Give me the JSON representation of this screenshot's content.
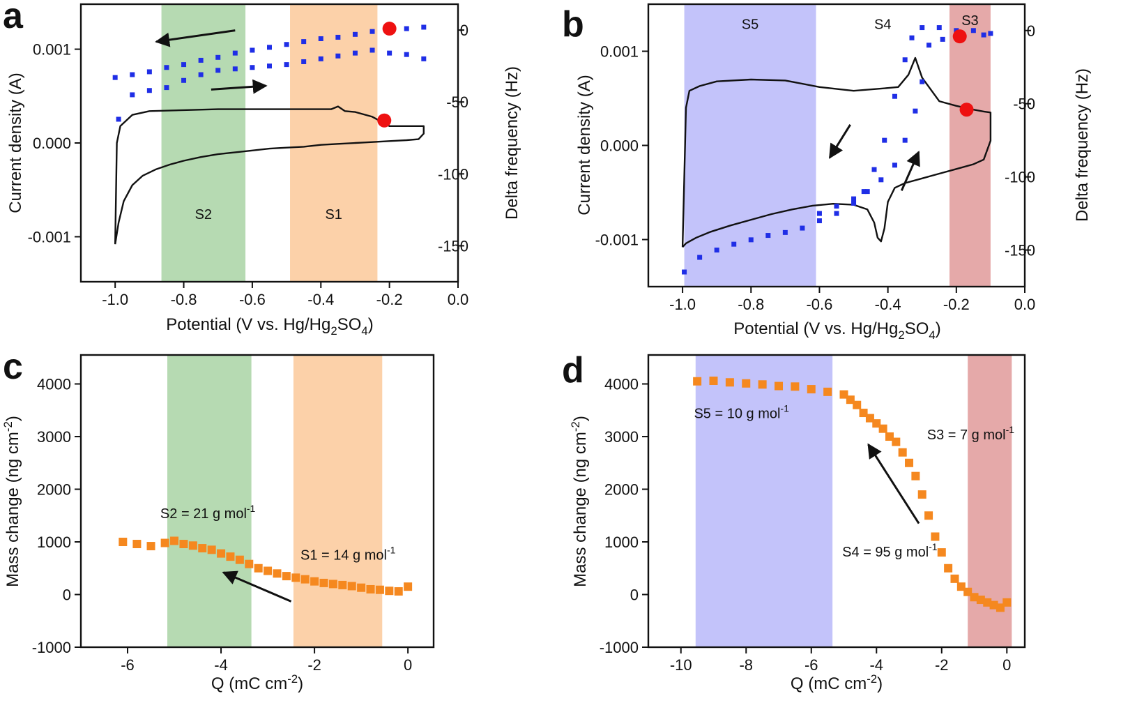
{
  "chart_data": [
    {
      "id": "a",
      "type": "line",
      "panel_label": "a",
      "xlabel": "Potential (V vs. Hg/Hg2SO4)",
      "ylabel": "Current density (A)",
      "y2label": "Delta frequency (Hz)",
      "xlim": [
        -1.1,
        0.0
      ],
      "ylim": [
        -0.00148,
        0.00148
      ],
      "y2lim": [
        -175,
        18
      ],
      "xticks": [
        -1.0,
        -0.8,
        -0.6,
        -0.4,
        -0.2,
        0.0
      ],
      "xtick_labels": [
        "-1.0",
        "-0.8",
        "-0.6",
        "-0.4",
        "-0.2",
        "0.0"
      ],
      "yticks": [
        -0.001,
        0.0,
        0.001
      ],
      "ytick_labels": [
        "-0.001",
        "0.000",
        "0.001"
      ],
      "y2ticks": [
        0,
        -50,
        -100,
        -150
      ],
      "y2tick_labels": [
        "0",
        "-50",
        "-100",
        "-150"
      ],
      "regions": [
        {
          "label": "S2",
          "x": [
            -0.865,
            -0.62
          ],
          "color": "#a9d3a5",
          "label_y": -0.00076
        },
        {
          "label": "S1",
          "x": [
            -0.49,
            -0.235
          ],
          "color": "#fbc99a",
          "label_y": -0.00076
        }
      ],
      "cv_curve": {
        "axis": "left",
        "x": [
          -1.0,
          -0.99,
          -0.975,
          -0.95,
          -0.92,
          -0.88,
          -0.84,
          -0.8,
          -0.75,
          -0.7,
          -0.65,
          -0.6,
          -0.55,
          -0.5,
          -0.45,
          -0.4,
          -0.35,
          -0.3,
          -0.25,
          -0.2,
          -0.15,
          -0.115,
          -0.1,
          -0.1,
          -0.115,
          -0.15,
          -0.2,
          -0.25,
          -0.3,
          -0.33,
          -0.35,
          -0.37,
          -0.4,
          -0.5,
          -0.6,
          -0.7,
          -0.8,
          -0.9,
          -0.95,
          -0.985,
          -0.995,
          -1.0
        ],
        "y": [
          -0.00108,
          -0.00085,
          -0.00062,
          -0.00045,
          -0.00035,
          -0.00028,
          -0.00023,
          -0.00019,
          -0.00015,
          -0.00012,
          -0.0001,
          -8e-05,
          -6e-05,
          -5e-05,
          -4e-05,
          -2e-05,
          -1e-05,
          0.0,
          1e-05,
          2e-05,
          3e-05,
          4e-05,
          0.0001,
          0.00018,
          0.00018,
          0.00018,
          0.00018,
          0.00028,
          0.00033,
          0.00034,
          0.00039,
          0.00036,
          0.00036,
          0.00036,
          0.00036,
          0.00036,
          0.00035,
          0.00034,
          0.0003,
          0.00018,
          0.0,
          -0.00108
        ]
      },
      "frequency_scatter": {
        "axis": "right",
        "color": "#1f2ee6",
        "x": [
          -1.0,
          -0.95,
          -0.9,
          -0.85,
          -0.8,
          -0.75,
          -0.7,
          -0.65,
          -0.6,
          -0.55,
          -0.5,
          -0.45,
          -0.4,
          -0.35,
          -0.3,
          -0.25,
          -0.2,
          -0.15,
          -0.1,
          -0.1,
          -0.15,
          -0.2,
          -0.25,
          -0.3,
          -0.35,
          -0.4,
          -0.45,
          -0.5,
          -0.55,
          -0.6,
          -0.65,
          -0.7,
          -0.75,
          -0.8,
          -0.85,
          -0.9,
          -0.95,
          -0.99
        ],
        "y": [
          -33,
          -31,
          -29,
          -26,
          -24,
          -21,
          -19,
          -16,
          -14,
          -12,
          -10,
          -8,
          -6,
          -5,
          -3,
          -1,
          0,
          1,
          2,
          -20,
          -17,
          -16,
          -14,
          -16,
          -18,
          -20,
          -22,
          -24,
          -25,
          -26,
          -27,
          -28,
          -31,
          -35,
          -40,
          -42,
          -45,
          -62
        ]
      },
      "markers": [
        {
          "x": -0.2,
          "y": 1,
          "axis": "right",
          "color": "#ee1111"
        },
        {
          "x": -0.215,
          "y": 0.00024,
          "axis": "left",
          "color": "#ee1111"
        }
      ],
      "arrows": [
        {
          "x1": -0.65,
          "y1": 0.0012,
          "x2": -0.88,
          "y2": 0.00108,
          "axis": "left"
        },
        {
          "x1": -0.72,
          "y1": 0.00057,
          "x2": -0.56,
          "y2": 0.00061,
          "axis": "left"
        }
      ]
    },
    {
      "id": "b",
      "type": "line",
      "panel_label": "b",
      "xlabel": "Potential (V vs. Hg/Hg2SO4)",
      "ylabel": "Current density (A)",
      "y2label": "Delta frequency (Hz)",
      "xlim": [
        -1.1,
        0.0
      ],
      "ylim": [
        -0.0015,
        0.0015
      ],
      "y2lim": [
        -175,
        18
      ],
      "xticks": [
        -1.0,
        -0.8,
        -0.6,
        -0.4,
        -0.2,
        0.0
      ],
      "xtick_labels": [
        "-1.0",
        "-0.8",
        "-0.6",
        "-0.4",
        "-0.2",
        "0.0"
      ],
      "yticks": [
        -0.001,
        0.0,
        0.001
      ],
      "ytick_labels": [
        "-0.001",
        "0.000",
        "0.001"
      ],
      "y2ticks": [
        0,
        -50,
        -100,
        -150
      ],
      "y2tick_labels": [
        "0",
        "-50",
        "-100",
        "-150"
      ],
      "regions": [
        {
          "label": "S5",
          "x": [
            -0.995,
            -0.61
          ],
          "color": "#b9b9f9",
          "label_y": 0.00129
        },
        {
          "label": "S4",
          "x": [
            -0.61,
            -0.22
          ],
          "color": "none",
          "label_y": 0.00129
        },
        {
          "label": "S3",
          "x": [
            -0.22,
            -0.1
          ],
          "color": "#e09a9a",
          "label_y": 0.00133
        }
      ],
      "cv_curve": {
        "axis": "left",
        "x": [
          -1.0,
          -0.99,
          -0.98,
          -0.96,
          -0.92,
          -0.86,
          -0.8,
          -0.74,
          -0.68,
          -0.62,
          -0.56,
          -0.5,
          -0.46,
          -0.44,
          -0.43,
          -0.42,
          -0.41,
          -0.4,
          -0.38,
          -0.35,
          -0.3,
          -0.25,
          -0.2,
          -0.15,
          -0.12,
          -0.11,
          -0.1,
          -0.1,
          -0.12,
          -0.15,
          -0.2,
          -0.25,
          -0.3,
          -0.32,
          -0.34,
          -0.37,
          -0.4,
          -0.5,
          -0.6,
          -0.7,
          -0.8,
          -0.9,
          -0.95,
          -0.98,
          -0.99,
          -1.0
        ],
        "y": [
          -0.00108,
          -0.00104,
          -0.00102,
          -0.00098,
          -0.00092,
          -0.00085,
          -0.00079,
          -0.00073,
          -0.00068,
          -0.00064,
          -0.00062,
          -0.00063,
          -0.00068,
          -0.00082,
          -0.00098,
          -0.00102,
          -0.00088,
          -0.0006,
          -0.00045,
          -0.0004,
          -0.00035,
          -0.0003,
          -0.00025,
          -0.0002,
          -0.00015,
          -5e-05,
          5e-05,
          0.00035,
          0.00036,
          0.00038,
          0.00042,
          0.00047,
          0.00072,
          0.00093,
          0.00075,
          0.00062,
          0.00061,
          0.00058,
          0.00062,
          0.00069,
          0.0007,
          0.00068,
          0.00063,
          0.00058,
          0.0004,
          -0.00108
        ]
      },
      "frequency_scatter": {
        "axis": "right",
        "color": "#1f2ee6",
        "x": [
          -0.995,
          -0.95,
          -0.9,
          -0.85,
          -0.8,
          -0.75,
          -0.7,
          -0.65,
          -0.6,
          -0.55,
          -0.5,
          -0.47,
          -0.44,
          -0.41,
          -0.38,
          -0.35,
          -0.33,
          -0.3,
          -0.25,
          -0.2,
          -0.15,
          -0.1,
          -0.12,
          -0.18,
          -0.24,
          -0.28,
          -0.3,
          -0.32,
          -0.35,
          -0.38,
          -0.42,
          -0.46,
          -0.5,
          -0.55,
          -0.6
        ],
        "y": [
          -165,
          -155,
          -150,
          -146,
          -143,
          -140,
          -138,
          -135,
          -130,
          -125,
          -118,
          -110,
          -95,
          -75,
          -45,
          -20,
          -5,
          2,
          2,
          0,
          0,
          -2,
          -3,
          -4,
          -6,
          -10,
          -35,
          -55,
          -75,
          -92,
          -102,
          -110,
          -115,
          -120,
          -125
        ]
      },
      "markers": [
        {
          "x": -0.19,
          "y": -4,
          "axis": "right",
          "color": "#ee1111"
        },
        {
          "x": -0.17,
          "y": 0.00038,
          "axis": "left",
          "color": "#ee1111"
        }
      ],
      "arrows": [
        {
          "x1": -0.51,
          "y1": 0.00022,
          "x2": -0.57,
          "y2": -0.00013,
          "axis": "left"
        },
        {
          "x1": -0.36,
          "y1": -0.00048,
          "x2": -0.31,
          "y2": -7e-05,
          "axis": "left"
        }
      ]
    },
    {
      "id": "c",
      "type": "scatter",
      "panel_label": "c",
      "xlabel": "Q (mC cm-2)",
      "ylabel": "Mass change (ng cm-2)",
      "xlim": [
        -7.0,
        0.55
      ],
      "ylim": [
        -1000,
        4550
      ],
      "xticks": [
        -6,
        -4,
        -2,
        0
      ],
      "xtick_labels": [
        "-6",
        "-4",
        "-2",
        "0"
      ],
      "yticks": [
        -1000,
        0,
        1000,
        2000,
        3000,
        4000
      ],
      "ytick_labels": [
        "-1000",
        "0",
        "1000",
        "2000",
        "3000",
        "4000"
      ],
      "color": "#f5881f",
      "regions": [
        {
          "label": "",
          "x": [
            -5.15,
            -3.35
          ],
          "color": "#a9d3a5"
        },
        {
          "label": "",
          "x": [
            -2.45,
            -0.55
          ],
          "color": "#fbc99a"
        }
      ],
      "x": [
        -6.1,
        -5.8,
        -5.5,
        -5.2,
        -5.0,
        -4.8,
        -4.6,
        -4.4,
        -4.2,
        -4.0,
        -3.8,
        -3.6,
        -3.4,
        -3.2,
        -3.0,
        -2.8,
        -2.6,
        -2.4,
        -2.2,
        -2.0,
        -1.8,
        -1.6,
        -1.4,
        -1.2,
        -1.0,
        -0.8,
        -0.6,
        -0.4,
        -0.2,
        0.0
      ],
      "y": [
        1000,
        960,
        920,
        980,
        1020,
        960,
        930,
        880,
        850,
        780,
        720,
        660,
        580,
        500,
        450,
        400,
        350,
        320,
        290,
        250,
        220,
        200,
        180,
        160,
        130,
        100,
        90,
        70,
        60,
        150
      ],
      "annotations": [
        {
          "text": "S2 = 21 g mol-1",
          "x": -5.3,
          "y": 1450
        },
        {
          "text": "S1 = 14 g mol-1",
          "x": -2.3,
          "y": 660
        }
      ],
      "arrows": [
        {
          "x1": -2.5,
          "y1": -130,
          "x2": -3.95,
          "y2": 420
        }
      ]
    },
    {
      "id": "d",
      "type": "scatter",
      "panel_label": "d",
      "xlabel": "Q (mC cm-2)",
      "ylabel": "Mass change (ng cm-2)",
      "xlim": [
        -11.0,
        0.55
      ],
      "ylim": [
        -1000,
        4550
      ],
      "xticks": [
        -10,
        -8,
        -6,
        -4,
        -2,
        0
      ],
      "xtick_labels": [
        "-10",
        "-8",
        "-6",
        "-4",
        "-2",
        "0"
      ],
      "yticks": [
        -1000,
        0,
        1000,
        2000,
        3000,
        4000
      ],
      "ytick_labels": [
        "-1000",
        "0",
        "1000",
        "2000",
        "3000",
        "4000"
      ],
      "color": "#f5881f",
      "regions": [
        {
          "label": "",
          "x": [
            -9.55,
            -5.35
          ],
          "color": "#b9b9f9"
        },
        {
          "label": "",
          "x": [
            -1.2,
            0.15
          ],
          "color": "#e09a9a"
        }
      ],
      "x": [
        -9.5,
        -9.0,
        -8.5,
        -8.0,
        -7.5,
        -7.0,
        -6.5,
        -6.0,
        -5.5,
        -5.0,
        -4.8,
        -4.6,
        -4.4,
        -4.2,
        -4.0,
        -3.8,
        -3.6,
        -3.4,
        -3.2,
        -3.0,
        -2.8,
        -2.6,
        -2.4,
        -2.2,
        -2.0,
        -1.8,
        -1.6,
        -1.4,
        -1.2,
        -1.0,
        -0.8,
        -0.6,
        -0.4,
        -0.2,
        0.0
      ],
      "y": [
        4050,
        4060,
        4030,
        4010,
        3990,
        3960,
        3950,
        3900,
        3850,
        3800,
        3700,
        3600,
        3450,
        3350,
        3250,
        3150,
        3000,
        2900,
        2700,
        2500,
        2250,
        1900,
        1500,
        1100,
        800,
        500,
        300,
        150,
        50,
        -50,
        -100,
        -150,
        -200,
        -250,
        -150
      ],
      "annotations": [
        {
          "text": "S5 = 10 g mol-1",
          "x": -9.6,
          "y": 3350
        },
        {
          "text": "S3 = 7 g mol-1",
          "x": -2.45,
          "y": 2950
        },
        {
          "text": "S4 = 95 g mol-1",
          "x": -5.05,
          "y": 720
        }
      ],
      "arrows": [
        {
          "x1": -2.7,
          "y1": 1350,
          "x2": -4.25,
          "y2": 2850
        }
      ]
    }
  ]
}
